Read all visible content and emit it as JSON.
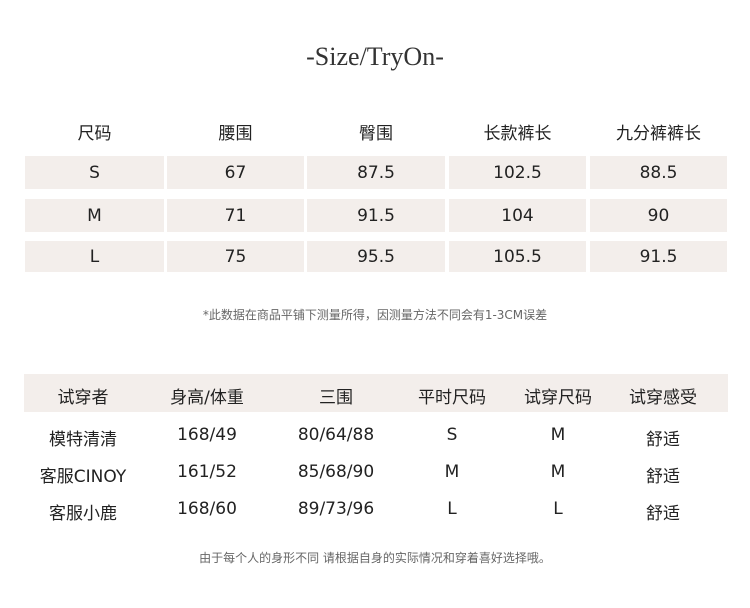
{
  "title": "-Size/TryOn-",
  "size_table": {
    "headers": [
      "尺码",
      "腰围",
      "臀围",
      "长款裤长",
      "九分裤裤长"
    ],
    "rows": [
      [
        "S",
        "67",
        "87.5",
        "102.5",
        "88.5"
      ],
      [
        "M",
        "71",
        "91.5",
        "104",
        "90"
      ],
      [
        "L",
        "75",
        "95.5",
        "105.5",
        "91.5"
      ]
    ]
  },
  "size_note": "*此数据在商品平铺下测量所得，因测量方法不同会有1-3CM误差",
  "tryon_table": {
    "headers": [
      "试穿者",
      "身高/体重",
      "三围",
      "平时尺码",
      "试穿尺码",
      "试穿感受"
    ],
    "rows": [
      [
        "模特清清",
        "168/49",
        "80/64/88",
        "S",
        "M",
        "舒适"
      ],
      [
        "客服CINOY",
        "161/52",
        "85/68/90",
        "M",
        "M",
        "舒适"
      ],
      [
        "客服小鹿",
        "168/60",
        "89/73/96",
        "L",
        "L",
        "舒适"
      ]
    ]
  },
  "tryon_note": "由于每个人的身形不同 请根据自身的实际情况和穿着喜好选择哦。",
  "colors": {
    "cell_bg": "#f3eeeb",
    "text": "#222222",
    "note": "#666666"
  }
}
